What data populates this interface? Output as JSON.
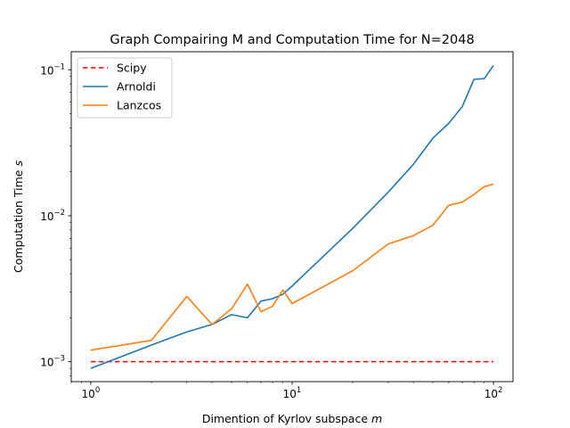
{
  "chart_data": {
    "type": "line",
    "title": "Graph Compairing M and Computation Time for N=2048",
    "xlabel": "Dimention of Kyrlov subspace m",
    "xlabel_parts": [
      "Dimention of Kyrlov subspace ",
      "m"
    ],
    "ylabel": "Computation Time s",
    "ylabel_parts": [
      "Computation Time ",
      "s"
    ],
    "x_scale": "log",
    "y_scale": "log",
    "xlim": [
      0.8,
      125
    ],
    "ylim": [
      0.00073,
      0.133
    ],
    "x_ticks": [
      {
        "value": 1,
        "base": "10",
        "exp": "0"
      },
      {
        "value": 10,
        "base": "10",
        "exp": "1"
      },
      {
        "value": 100,
        "base": "10",
        "exp": "2"
      }
    ],
    "y_ticks": [
      {
        "value": 0.001,
        "base": "10",
        "exp": "−3"
      },
      {
        "value": 0.01,
        "base": "10",
        "exp": "−2"
      },
      {
        "value": 0.1,
        "base": "10",
        "exp": "−1"
      }
    ],
    "grid": false,
    "legend_position": "top-left",
    "series": [
      {
        "name": "Scipy",
        "color": "#ff0000",
        "dashed": true,
        "x": [
          1,
          100
        ],
        "y": [
          0.001,
          0.001
        ]
      },
      {
        "name": "Arnoldi",
        "color": "#1f77b4",
        "dashed": false,
        "x": [
          1,
          2,
          3,
          4,
          5,
          6,
          7,
          8,
          9,
          10,
          20,
          30,
          40,
          50,
          60,
          70,
          80,
          90,
          100
        ],
        "y": [
          0.0009,
          0.0013,
          0.0016,
          0.0018,
          0.0021,
          0.002,
          0.0026,
          0.0027,
          0.0029,
          0.0033,
          0.0082,
          0.0145,
          0.0225,
          0.034,
          0.043,
          0.056,
          0.086,
          0.087,
          0.107
        ]
      },
      {
        "name": "Lanzcos",
        "color": "#ff7f0e",
        "dashed": false,
        "x": [
          1,
          2,
          3,
          4,
          5,
          6,
          7,
          8,
          9,
          10,
          20,
          30,
          40,
          50,
          60,
          70,
          80,
          90,
          100
        ],
        "y": [
          0.0012,
          0.0014,
          0.0028,
          0.0018,
          0.0023,
          0.0034,
          0.0022,
          0.0024,
          0.0031,
          0.0025,
          0.0042,
          0.0064,
          0.0073,
          0.0086,
          0.0118,
          0.0124,
          0.014,
          0.0158,
          0.0165
        ]
      }
    ]
  }
}
